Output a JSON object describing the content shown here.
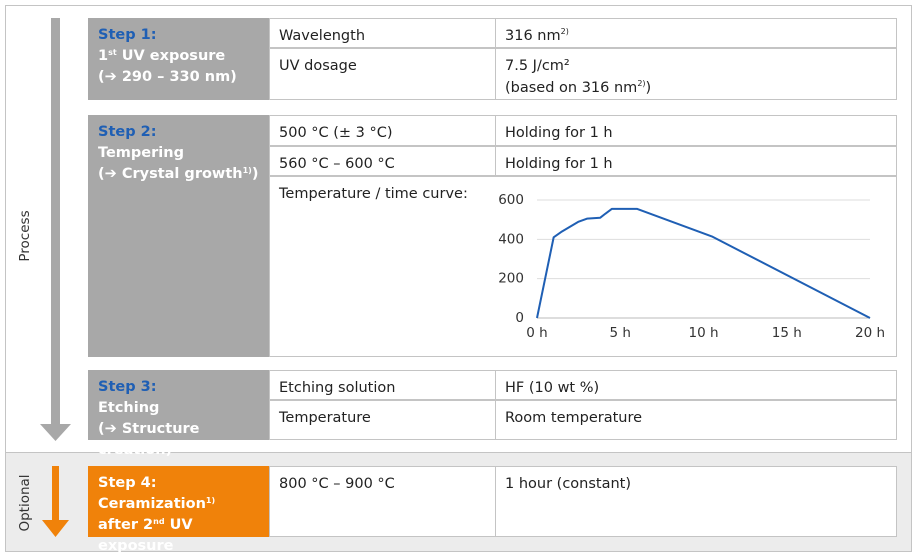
{
  "side_labels": {
    "process": "Process",
    "optional": "Optional"
  },
  "steps": [
    {
      "title": "Step 1:",
      "lines": [
        [
          "1",
          {
            "sup": "st"
          },
          " UV exposure"
        ],
        "(➔ 290 – 330 nm)"
      ],
      "rows": [
        [
          "Wavelength",
          [
            [
              "316 nm",
              {
                "sup": "2)"
              }
            ]
          ]
        ],
        [
          "UV dosage",
          [
            "7.5 J/cm²",
            [
              "(based on 316 nm",
              {
                "sup": "2)"
              },
              ")"
            ]
          ]
        ]
      ]
    },
    {
      "title": "Step 2:",
      "lines": [
        "Tempering",
        [
          "(➔ Crystal growth",
          {
            "sup": "1)"
          },
          ")"
        ]
      ],
      "rows": [
        [
          "500 °C (± 3 °C)",
          "Holding for 1 h"
        ],
        [
          "560 °C – 600 °C",
          "Holding for 1 h"
        ],
        [
          "Temperature / time curve:"
        ]
      ]
    },
    {
      "title": "Step 3:",
      "lines": [
        "Etching",
        "(➔ Structure creation)"
      ],
      "rows": [
        [
          "Etching solution",
          "HF (10 wt %)"
        ],
        [
          "Temperature",
          "Room temperature"
        ]
      ]
    },
    {
      "title": "Step 4:",
      "lines": [
        [
          "Ceramization",
          {
            "sup": "1)"
          }
        ],
        [
          "after 2",
          {
            "sup": "nd"
          },
          " UV exposure"
        ]
      ],
      "rows": [
        [
          "800 °C – 900 °C",
          "1 hour (constant)"
        ]
      ]
    }
  ],
  "chart_data": {
    "type": "line",
    "x": [
      0,
      1,
      1.5,
      2.5,
      3,
      3.8,
      4.1,
      4.5,
      6,
      10.5,
      20
    ],
    "series": [
      {
        "color": "#1f5fb4",
        "values": [
          0,
          410,
          440,
          490,
          505,
          510,
          530,
          555,
          555,
          415,
          0
        ]
      }
    ],
    "xlim": [
      0,
      20
    ],
    "ylim": [
      0,
      600
    ],
    "xticks": [
      {
        "value": 0,
        "label": "0 h"
      },
      {
        "value": 5,
        "label": "5 h"
      },
      {
        "value": 10,
        "label": "10 h"
      },
      {
        "value": 15,
        "label": "15 h"
      },
      {
        "value": 20,
        "label": "20 h"
      }
    ],
    "yticks": [
      0,
      200,
      400,
      600
    ],
    "grid": true
  }
}
